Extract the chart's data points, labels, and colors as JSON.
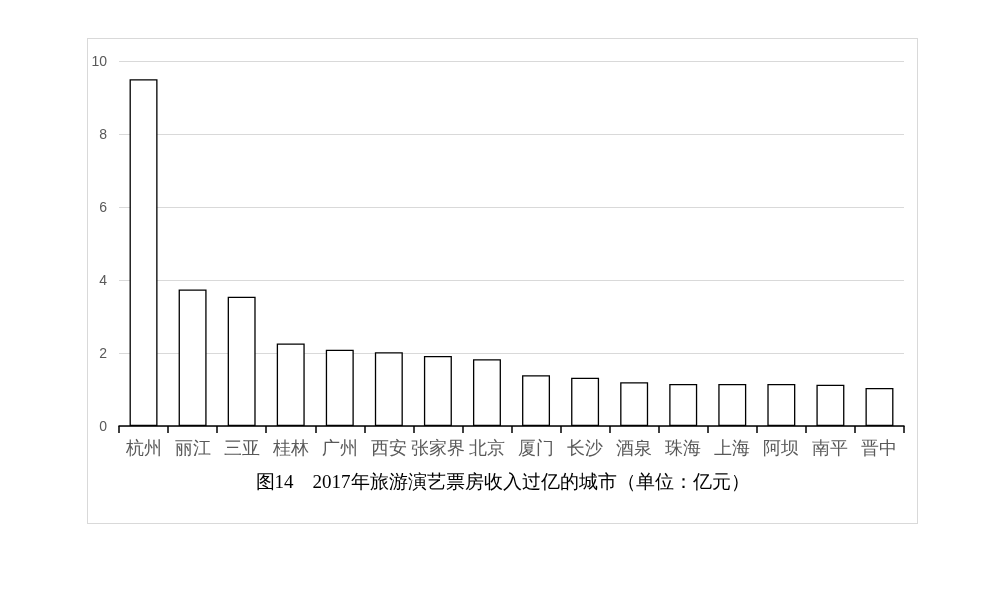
{
  "chart_data": {
    "type": "bar",
    "title": "图14　2017年旅游演艺票房收入过亿的城市（单位：亿元）",
    "categories": [
      "杭州",
      "丽江",
      "三亚",
      "桂林",
      "广州",
      "西安",
      "张家界",
      "北京",
      "厦门",
      "长沙",
      "酒泉",
      "珠海",
      "上海",
      "阿坝",
      "南平",
      "晋中"
    ],
    "values": [
      9.5,
      3.74,
      3.54,
      2.26,
      2.09,
      2.02,
      1.92,
      1.83,
      1.39,
      1.32,
      1.2,
      1.15,
      1.15,
      1.15,
      1.13,
      1.04
    ],
    "color": "#ffffff",
    "ylim": [
      0,
      10
    ],
    "yticks": [
      0,
      2,
      4,
      6,
      8,
      10
    ],
    "grid": "y"
  }
}
